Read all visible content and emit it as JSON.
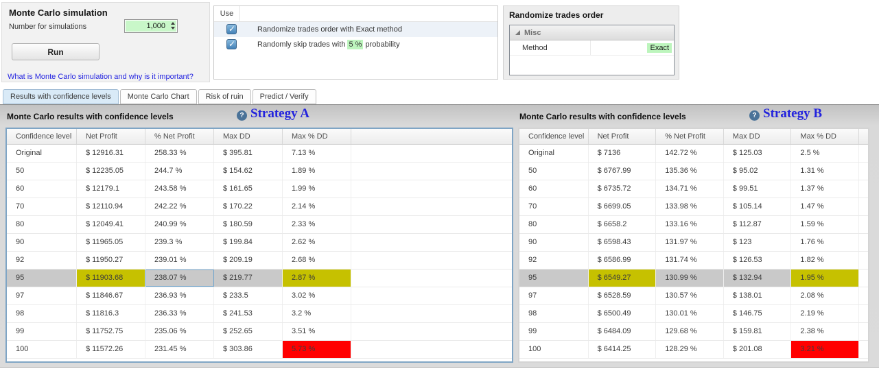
{
  "colors": {
    "selected_row": "#c9c9c9",
    "warning_highlight": "#c6c100",
    "danger_highlight": "#ff0000",
    "value_highlight": "#bdf5bd",
    "link": "#2525e0",
    "strategy_label": "#2323dd"
  },
  "icons": {
    "help_glyph": "?"
  },
  "simulation_panel": {
    "title": "Monte Carlo simulation",
    "simulations_label": "Number for simulations",
    "simulations_value": "1,000",
    "run_label": "Run",
    "help_link": "What is Monte Carlo simulation and why is it important?"
  },
  "options_panel": {
    "use_header": "Use",
    "options": [
      {
        "checked": true,
        "text_before": "Randomize trades order with Exact method",
        "highlight": "",
        "text_after": ""
      },
      {
        "checked": true,
        "text_before": "Randomly skip trades with ",
        "highlight": "5 %",
        "text_after": " probability"
      }
    ]
  },
  "randomize_panel": {
    "title": "Randomize trades order",
    "group": "Misc",
    "property": "Method",
    "value": "Exact"
  },
  "tabs": {
    "items": [
      "Results with confidence levels",
      "Monte Carlo Chart",
      "Risk of ruin",
      "Predict / Verify"
    ],
    "active_index": 0
  },
  "sections": [
    {
      "header": "Monte Carlo results with confidence levels",
      "strategy": "Strategy A",
      "columns": [
        "Confidence level",
        "Net Profit",
        "% Net Profit",
        "Max DD",
        "Max % DD"
      ],
      "rows": [
        {
          "level": "Original",
          "net_profit": "$ 12916.31",
          "pct_net_profit": "258.33 %",
          "max_dd": "$ 395.81",
          "max_pct_dd": "7.13 %"
        },
        {
          "level": "50",
          "net_profit": "$ 12235.05",
          "pct_net_profit": "244.7 %",
          "max_dd": "$ 154.62",
          "max_pct_dd": "1.89 %"
        },
        {
          "level": "60",
          "net_profit": "$ 12179.1",
          "pct_net_profit": "243.58 %",
          "max_dd": "$ 161.65",
          "max_pct_dd": "1.99 %"
        },
        {
          "level": "70",
          "net_profit": "$ 12110.94",
          "pct_net_profit": "242.22 %",
          "max_dd": "$ 170.22",
          "max_pct_dd": "2.14 %"
        },
        {
          "level": "80",
          "net_profit": "$ 12049.41",
          "pct_net_profit": "240.99 %",
          "max_dd": "$ 180.59",
          "max_pct_dd": "2.33 %"
        },
        {
          "level": "90",
          "net_profit": "$ 11965.05",
          "pct_net_profit": "239.3 %",
          "max_dd": "$ 199.84",
          "max_pct_dd": "2.62 %"
        },
        {
          "level": "92",
          "net_profit": "$ 11950.27",
          "pct_net_profit": "239.01 %",
          "max_dd": "$ 209.19",
          "max_pct_dd": "2.68 %"
        },
        {
          "level": "95",
          "net_profit": "$ 11903.68",
          "pct_net_profit": "238.07 %",
          "max_dd": "$ 219.77",
          "max_pct_dd": "2.87 %",
          "selected": true,
          "focus": "pct_net_profit",
          "hl": {
            "net_profit": "yellow",
            "max_pct_dd": "yellow"
          }
        },
        {
          "level": "97",
          "net_profit": "$ 11846.67",
          "pct_net_profit": "236.93 %",
          "max_dd": "$ 233.5",
          "max_pct_dd": "3.02 %"
        },
        {
          "level": "98",
          "net_profit": "$ 11816.3",
          "pct_net_profit": "236.33 %",
          "max_dd": "$ 241.53",
          "max_pct_dd": "3.2 %"
        },
        {
          "level": "99",
          "net_profit": "$ 11752.75",
          "pct_net_profit": "235.06 %",
          "max_dd": "$ 252.65",
          "max_pct_dd": "3.51 %"
        },
        {
          "level": "100",
          "net_profit": "$ 11572.26",
          "pct_net_profit": "231.45 %",
          "max_dd": "$ 303.86",
          "max_pct_dd": "5.73 %",
          "hl": {
            "max_pct_dd": "red"
          }
        }
      ]
    },
    {
      "header": "Monte Carlo results with confidence levels",
      "strategy": "Strategy B",
      "columns": [
        "Confidence level",
        "Net Profit",
        "% Net Profit",
        "Max DD",
        "Max % DD"
      ],
      "rows": [
        {
          "level": "Original",
          "net_profit": "$ 7136",
          "pct_net_profit": "142.72 %",
          "max_dd": "$ 125.03",
          "max_pct_dd": "2.5 %"
        },
        {
          "level": "50",
          "net_profit": "$ 6767.99",
          "pct_net_profit": "135.36 %",
          "max_dd": "$ 95.02",
          "max_pct_dd": "1.31 %"
        },
        {
          "level": "60",
          "net_profit": "$ 6735.72",
          "pct_net_profit": "134.71 %",
          "max_dd": "$ 99.51",
          "max_pct_dd": "1.37 %"
        },
        {
          "level": "70",
          "net_profit": "$ 6699.05",
          "pct_net_profit": "133.98 %",
          "max_dd": "$ 105.14",
          "max_pct_dd": "1.47 %"
        },
        {
          "level": "80",
          "net_profit": "$ 6658.2",
          "pct_net_profit": "133.16 %",
          "max_dd": "$ 112.87",
          "max_pct_dd": "1.59 %"
        },
        {
          "level": "90",
          "net_profit": "$ 6598.43",
          "pct_net_profit": "131.97 %",
          "max_dd": "$ 123",
          "max_pct_dd": "1.76 %"
        },
        {
          "level": "92",
          "net_profit": "$ 6586.99",
          "pct_net_profit": "131.74 %",
          "max_dd": "$ 126.53",
          "max_pct_dd": "1.82 %"
        },
        {
          "level": "95",
          "net_profit": "$ 6549.27",
          "pct_net_profit": "130.99 %",
          "max_dd": "$ 132.94",
          "max_pct_dd": "1.95 %",
          "selected": true,
          "hl": {
            "net_profit": "yellow",
            "max_pct_dd": "yellow"
          }
        },
        {
          "level": "97",
          "net_profit": "$ 6528.59",
          "pct_net_profit": "130.57 %",
          "max_dd": "$ 138.01",
          "max_pct_dd": "2.08 %"
        },
        {
          "level": "98",
          "net_profit": "$ 6500.49",
          "pct_net_profit": "130.01 %",
          "max_dd": "$ 146.75",
          "max_pct_dd": "2.19 %"
        },
        {
          "level": "99",
          "net_profit": "$ 6484.09",
          "pct_net_profit": "129.68 %",
          "max_dd": "$ 159.81",
          "max_pct_dd": "2.38 %"
        },
        {
          "level": "100",
          "net_profit": "$ 6414.25",
          "pct_net_profit": "128.29 %",
          "max_dd": "$ 201.08",
          "max_pct_dd": "3.21 %",
          "hl": {
            "max_pct_dd": "red"
          }
        }
      ]
    }
  ]
}
